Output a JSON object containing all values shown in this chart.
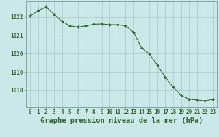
{
  "hours": [
    0,
    1,
    2,
    3,
    4,
    5,
    6,
    7,
    8,
    9,
    10,
    11,
    12,
    13,
    14,
    15,
    16,
    17,
    18,
    19,
    20,
    21,
    22,
    23
  ],
  "pressure": [
    1022.05,
    1022.35,
    1022.55,
    1022.15,
    1021.75,
    1021.52,
    1021.45,
    1021.52,
    1021.6,
    1021.62,
    1021.58,
    1021.58,
    1021.52,
    1021.18,
    1020.32,
    1019.98,
    1019.38,
    1018.72,
    1018.18,
    1017.72,
    1017.52,
    1017.48,
    1017.42,
    1017.52
  ],
  "line_color": "#2d6a2d",
  "marker": "D",
  "marker_size": 2.0,
  "background_color": "#cbe8e8",
  "grid_color": "#a8c8c8",
  "ylabel_ticks": [
    1018,
    1019,
    1020,
    1021,
    1022
  ],
  "xlabel_label": "Graphe pression niveau de la mer (hPa)",
  "ylim": [
    1017.1,
    1022.85
  ],
  "xlim": [
    -0.5,
    23.5
  ],
  "tick_fontsize": 5.5,
  "label_fontsize": 7.5,
  "label_color": "#2d6a2d"
}
